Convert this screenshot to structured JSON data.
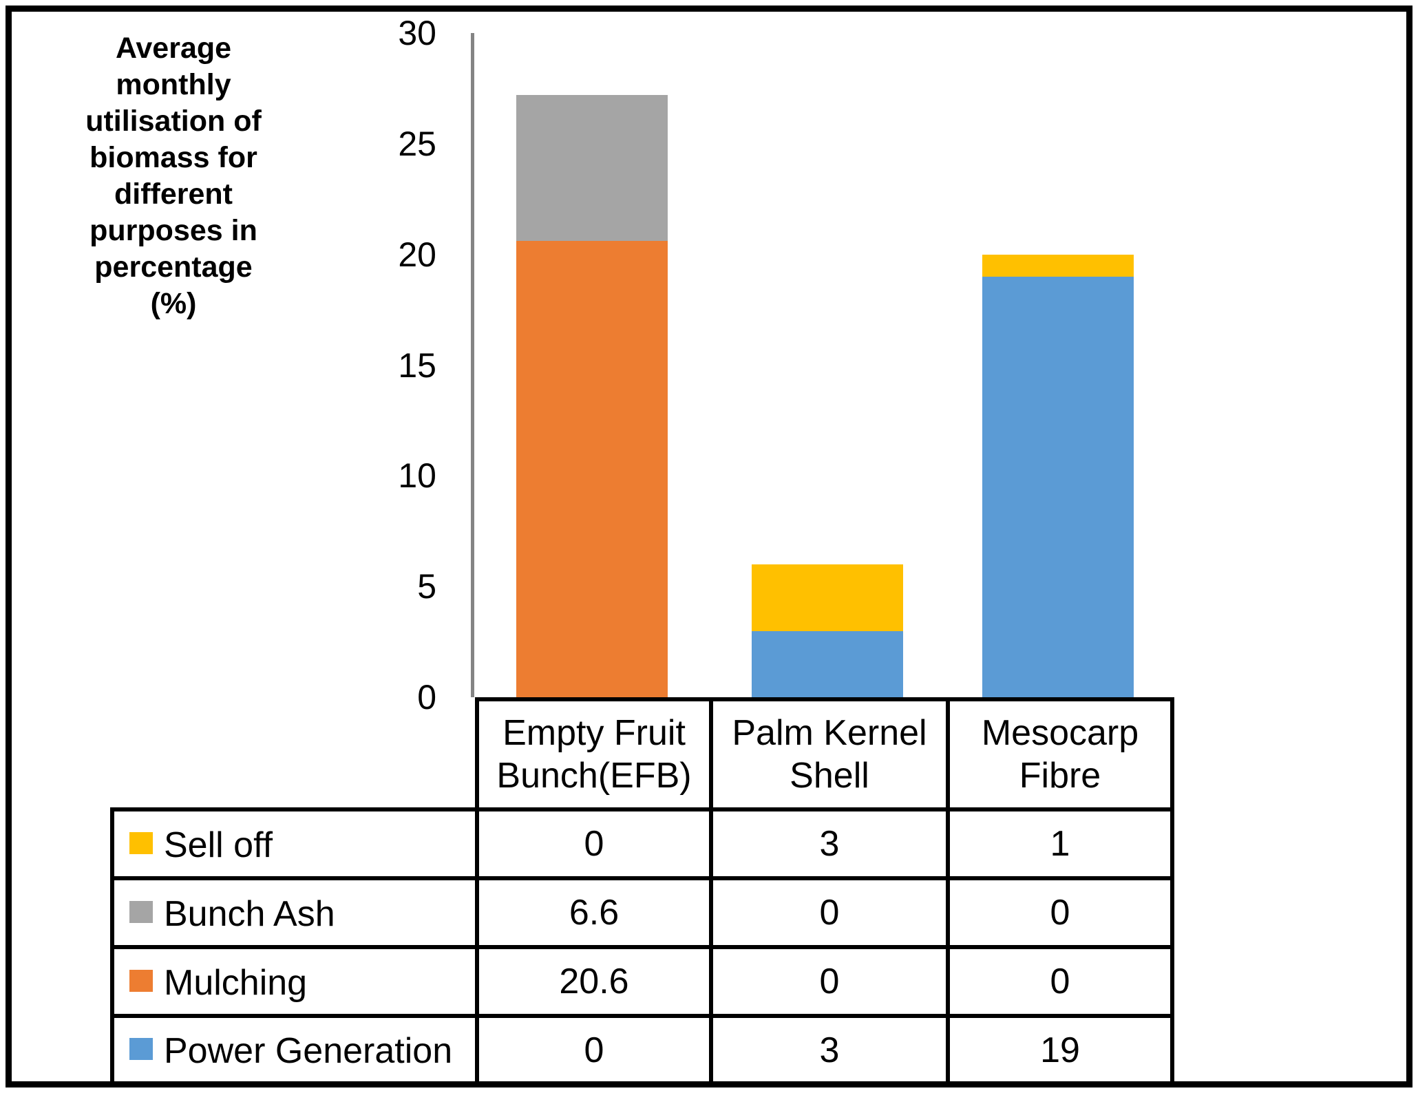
{
  "chart_data": {
    "type": "bar",
    "stacked": true,
    "ylabel": "Average monthly utilisation of biomass for different purposes in percentage (%)",
    "xlabel": "",
    "categories": [
      "Empty Fruit Bunch(EFB)",
      "Palm Kernel Shell",
      "Mesocarp Fibre"
    ],
    "series": [
      {
        "name": "Sell off",
        "color": "#FFC000",
        "values": [
          0,
          3,
          1
        ]
      },
      {
        "name": "Bunch Ash",
        "color": "#A5A5A5",
        "values": [
          6.6,
          0,
          0
        ]
      },
      {
        "name": "Mulching",
        "color": "#ED7D31",
        "values": [
          20.6,
          0,
          0
        ]
      },
      {
        "name": "Power Generation",
        "color": "#5B9BD5",
        "values": [
          0,
          3,
          19
        ]
      }
    ],
    "stack_order_bottom_to_top": [
      "Power Generation",
      "Mulching",
      "Bunch Ash",
      "Sell off"
    ],
    "yticks": [
      30,
      25,
      20,
      15,
      10,
      5,
      0
    ],
    "ylim": [
      0,
      30
    ],
    "gridlines": false,
    "legend_position": "table-left-column",
    "axis_line_color": "#848484",
    "border_color": "#000000",
    "background_color": "#FFFFFF"
  }
}
